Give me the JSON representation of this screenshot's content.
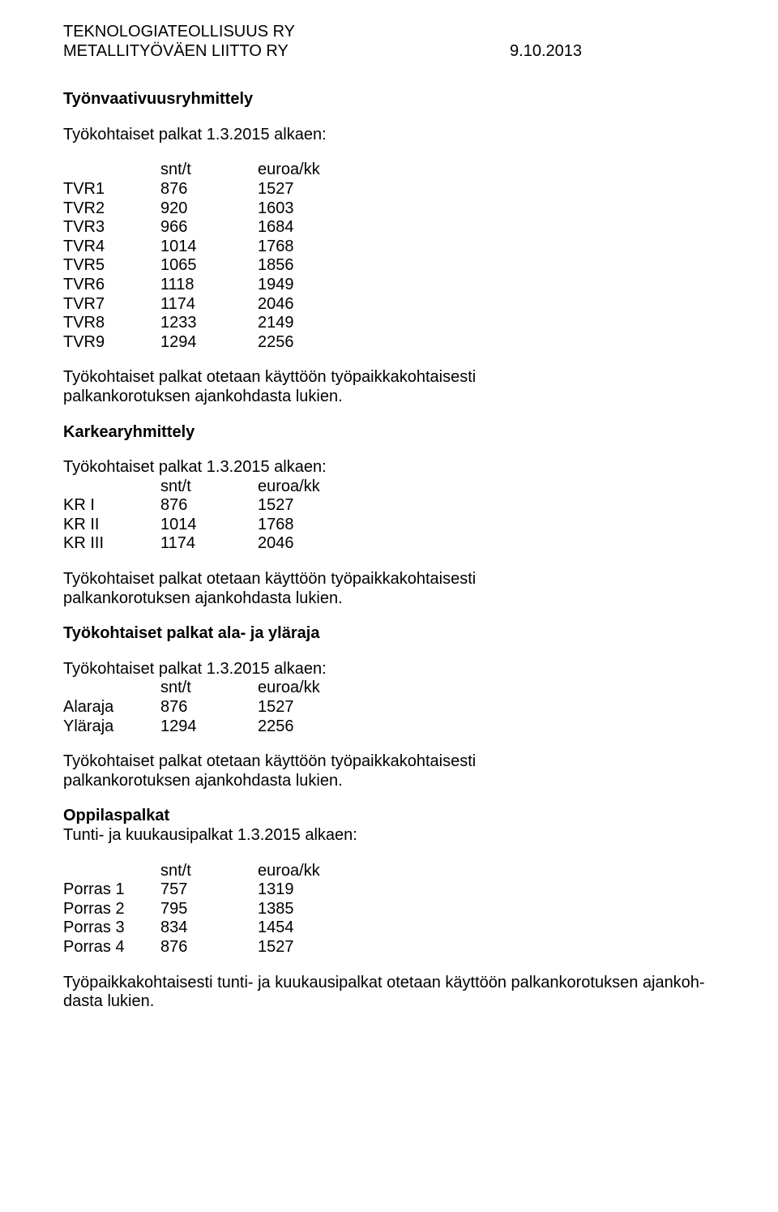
{
  "header": {
    "org1": "TEKNOLOGIATEOLLISUUS RY",
    "org2": "METALLITYÖVÄEN LIITTO RY",
    "date": "9.10.2013"
  },
  "section1": {
    "title": "Työnvaativuusryhmittely",
    "subtitle": "Työkohtaiset palkat 1.3.2015 alkaen:",
    "cols": {
      "snt": "snt/t",
      "euro": "euroa/kk"
    },
    "rows": [
      {
        "label": "TVR1",
        "snt": "876",
        "euro": "1527"
      },
      {
        "label": "TVR2",
        "snt": "920",
        "euro": "1603"
      },
      {
        "label": "TVR3",
        "snt": "966",
        "euro": "1684"
      },
      {
        "label": "TVR4",
        "snt": "1014",
        "euro": "1768"
      },
      {
        "label": "TVR5",
        "snt": "1065",
        "euro": "1856"
      },
      {
        "label": "TVR6",
        "snt": "1118",
        "euro": "1949"
      },
      {
        "label": "TVR7",
        "snt": "1174",
        "euro": "2046"
      },
      {
        "label": "TVR8",
        "snt": "1233",
        "euro": "2149"
      },
      {
        "label": "TVR9",
        "snt": "1294",
        "euro": "2256"
      }
    ],
    "note1": "Työkohtaiset palkat otetaan käyttöön työpaikkakohtaisesti",
    "note2": "palkankorotuksen ajankohdasta lukien."
  },
  "section2": {
    "title": "Karkearyhmittely",
    "subtitle": "Työkohtaiset palkat 1.3.2015 alkaen:",
    "cols": {
      "snt": "snt/t",
      "euro": "euroa/kk"
    },
    "rows": [
      {
        "label": "KR I",
        "snt": "876",
        "euro": "1527"
      },
      {
        "label": "KR II",
        "snt": "1014",
        "euro": "1768"
      },
      {
        "label": "KR III",
        "snt": "1174",
        "euro": "2046"
      }
    ],
    "note1": "Työkohtaiset palkat otetaan käyttöön työpaikkakohtaisesti",
    "note2": "palkankorotuksen ajankohdasta lukien."
  },
  "section3": {
    "title": "Työkohtaiset palkat ala- ja yläraja",
    "subtitle": "Työkohtaiset palkat 1.3.2015 alkaen:",
    "cols": {
      "snt": "snt/t",
      "euro": "euroa/kk"
    },
    "rows": [
      {
        "label": "Alaraja",
        "snt": "876",
        "euro": "1527"
      },
      {
        "label": "Yläraja",
        "snt": "1294",
        "euro": "2256"
      }
    ],
    "note1": "Työkohtaiset palkat otetaan käyttöön työpaikkakohtaisesti",
    "note2": "palkankorotuksen ajankohdasta lukien."
  },
  "section4": {
    "title": "Oppilaspalkat",
    "subtitle": "Tunti- ja kuukausipalkat 1.3.2015 alkaen:",
    "cols": {
      "snt": "snt/t",
      "euro": "euroa/kk"
    },
    "rows": [
      {
        "label": "Porras 1",
        "snt": "757",
        "euro": "1319"
      },
      {
        "label": "Porras 2",
        "snt": "795",
        "euro": "1385"
      },
      {
        "label": "Porras 3",
        "snt": "834",
        "euro": "1454"
      },
      {
        "label": "Porras 4",
        "snt": "876",
        "euro": "1527"
      }
    ],
    "note1": "Työpaikkakohtaisesti tunti- ja kuukausipalkat otetaan käyttöön palkankorotuksen ajankoh-",
    "note2": "dasta lukien."
  }
}
